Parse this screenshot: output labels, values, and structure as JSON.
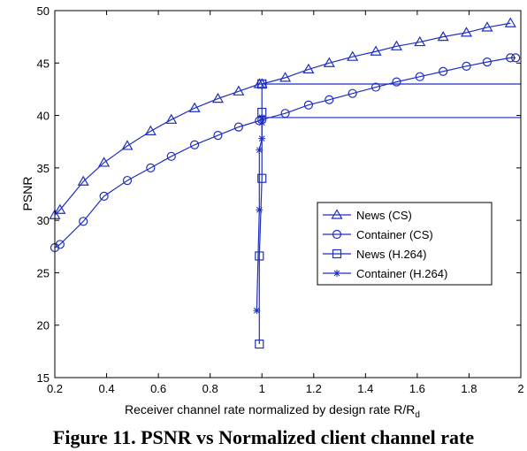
{
  "caption": "Figure 11. PSNR vs Normalized client channel rate",
  "chart_data": {
    "type": "line",
    "title": "",
    "xlabel": "Receiver channel rate normalized by design rate R/R",
    "xlabel_sub": "d",
    "ylabel": "PSNR",
    "xlim": [
      0.2,
      2.0
    ],
    "ylim": [
      15,
      50
    ],
    "xticks": [
      "0.2",
      "0.4",
      "0.6",
      "0.8",
      "1",
      "1.2",
      "1.4",
      "1.6",
      "1.8",
      "2"
    ],
    "yticks": [
      "15",
      "20",
      "25",
      "30",
      "35",
      "40",
      "45",
      "50"
    ],
    "grid": false,
    "legend_position": "center-right",
    "line_color": "#1f2fbf",
    "series": [
      {
        "name": "News (CS)",
        "marker": "triangle",
        "x": [
          0.2,
          0.22,
          0.31,
          0.39,
          0.48,
          0.57,
          0.65,
          0.74,
          0.83,
          0.91,
          0.99,
          1.0,
          1.09,
          1.18,
          1.26,
          1.35,
          1.44,
          1.52,
          1.61,
          1.7,
          1.79,
          1.87,
          1.96
        ],
        "y": [
          30.5,
          31.0,
          33.7,
          35.5,
          37.1,
          38.5,
          39.6,
          40.7,
          41.6,
          42.3,
          43.0,
          43.0,
          43.6,
          44.4,
          45.0,
          45.6,
          46.1,
          46.6,
          47.0,
          47.5,
          47.9,
          48.4,
          48.8
        ]
      },
      {
        "name": "Container (CS)",
        "marker": "circle",
        "x": [
          0.2,
          0.22,
          0.31,
          0.39,
          0.48,
          0.57,
          0.65,
          0.74,
          0.83,
          0.91,
          0.99,
          1.0,
          1.09,
          1.18,
          1.26,
          1.35,
          1.44,
          1.52,
          1.61,
          1.7,
          1.79,
          1.87,
          1.96,
          1.98
        ],
        "y": [
          27.4,
          27.7,
          29.9,
          32.3,
          33.8,
          35.0,
          36.1,
          37.2,
          38.1,
          38.9,
          39.5,
          39.6,
          40.2,
          41.0,
          41.5,
          42.1,
          42.7,
          43.2,
          43.7,
          44.2,
          44.7,
          45.1,
          45.5,
          45.5
        ]
      },
      {
        "name": "News (H.264)",
        "marker": "square",
        "x": [
          0.99,
          0.99,
          1.0,
          1.0,
          1.0,
          1.0,
          1.0,
          2.0
        ],
        "y": [
          18.2,
          26.6,
          34.0,
          40.3,
          43.0,
          43.0,
          43.0,
          43.0
        ]
      },
      {
        "name": "Container (H.264)",
        "marker": "star",
        "x": [
          0.98,
          0.99,
          0.99,
          1.0,
          1.0,
          1.0,
          1.0,
          1.0,
          2.0
        ],
        "y": [
          21.4,
          31.0,
          36.7,
          37.8,
          39.3,
          39.8,
          39.8,
          39.8,
          39.8
        ]
      }
    ]
  }
}
